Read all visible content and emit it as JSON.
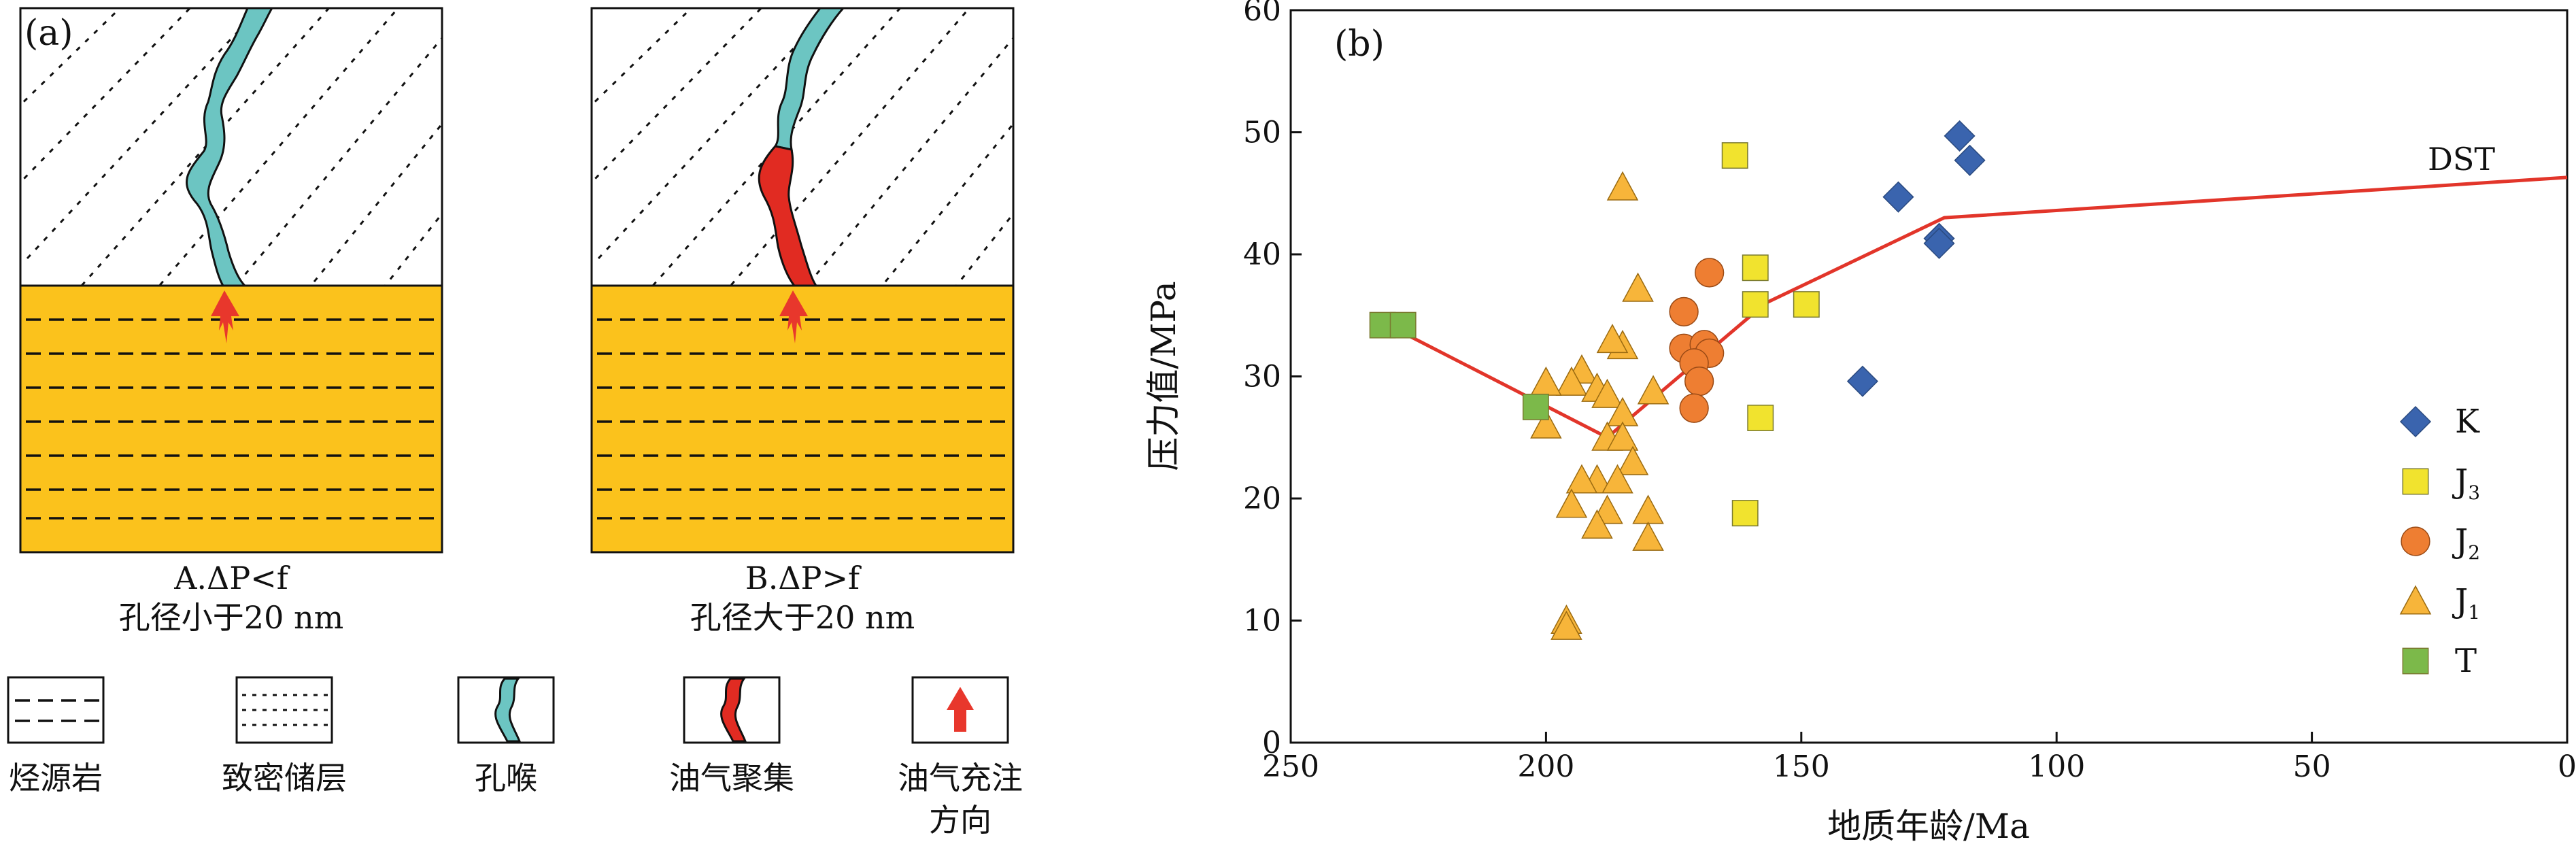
{
  "panel_a": {
    "label": "(a)",
    "case_a": {
      "line1": "A.ΔP<f",
      "line2": "孔径小于20 nm"
    },
    "case_b": {
      "line1": "B.ΔP>f",
      "line2": "孔径大于20 nm"
    },
    "legend": [
      {
        "icon": "source-rock-pattern",
        "label": "烃源岩"
      },
      {
        "icon": "tight-reservoir-pattern",
        "label": "致密储层"
      },
      {
        "icon": "pore-throat-icon",
        "label": "孔喉"
      },
      {
        "icon": "oil-gas-accumulation-icon",
        "label": "油气聚集"
      },
      {
        "icon": "charging-direction-arrow-icon",
        "label_line1": "油气充注",
        "label_line2": "方向"
      }
    ],
    "colors": {
      "source_rock": "#FBC21C",
      "pore_throat": "#6CC5C2",
      "accumulation": "#E12B22",
      "arrow": "#E8372C"
    }
  },
  "panel_b": {
    "label": "(b)"
  },
  "chart_data": {
    "type": "scatter",
    "xlabel": "地质年龄/Ma",
    "ylabel": "压力值/MPa",
    "xlim": [
      250,
      0
    ],
    "ylim": [
      0,
      60
    ],
    "xticks": [
      "250",
      "200",
      "150",
      "100",
      "50",
      "0"
    ],
    "yticks": [
      "0",
      "10",
      "20",
      "30",
      "40",
      "50",
      "60"
    ],
    "legend_position": "right",
    "series": [
      {
        "name": "K",
        "sub": "",
        "marker": "diamond",
        "color": "#3A64AE",
        "points": [
          [
            119,
            49.7
          ],
          [
            117,
            47.7
          ],
          [
            131,
            44.7
          ],
          [
            123,
            41.3
          ],
          [
            123,
            40.9
          ],
          [
            138,
            29.6
          ]
        ]
      },
      {
        "name": "J",
        "sub": "3",
        "marker": "square",
        "color": "#F1E32E",
        "points": [
          [
            163,
            48.1
          ],
          [
            159,
            38.9
          ],
          [
            159,
            35.9
          ],
          [
            149,
            35.9
          ],
          [
            158,
            26.6
          ],
          [
            161,
            18.8
          ]
        ]
      },
      {
        "name": "J",
        "sub": "2",
        "marker": "circle",
        "color": "#EE7E32",
        "points": [
          [
            168,
            38.5
          ],
          [
            173,
            35.3
          ],
          [
            173,
            32.3
          ],
          [
            169,
            32.6
          ],
          [
            168,
            31.9
          ],
          [
            171,
            31.1
          ],
          [
            170,
            29.6
          ],
          [
            171,
            27.4
          ]
        ]
      },
      {
        "name": "J",
        "sub": "1",
        "marker": "triangle",
        "color": "#F7B53A",
        "points": [
          [
            185,
            45.5
          ],
          [
            182,
            37.2
          ],
          [
            185,
            32.5
          ],
          [
            187,
            33.0
          ],
          [
            193,
            30.5
          ],
          [
            195,
            29.5
          ],
          [
            190,
            29.0
          ],
          [
            188,
            28.5
          ],
          [
            200,
            29.5
          ],
          [
            179,
            28.8
          ],
          [
            185,
            27.0
          ],
          [
            188,
            25.0
          ],
          [
            185,
            25.0
          ],
          [
            200,
            26.0
          ],
          [
            183,
            23.0
          ],
          [
            190,
            21.5
          ],
          [
            186,
            21.5
          ],
          [
            193,
            21.5
          ],
          [
            195,
            19.5
          ],
          [
            188,
            19.0
          ],
          [
            180,
            19.0
          ],
          [
            190,
            17.8
          ],
          [
            180,
            16.8
          ],
          [
            196,
            10.0
          ],
          [
            196,
            9.5
          ]
        ]
      },
      {
        "name": "T",
        "sub": "",
        "marker": "square",
        "color": "#7CB94A",
        "points": [
          [
            232,
            34.2
          ],
          [
            228,
            34.2
          ],
          [
            202,
            27.5
          ]
        ]
      }
    ],
    "dst_line": {
      "label": "DST",
      "color": "#E2352A",
      "points": [
        [
          230,
          34.0
        ],
        [
          188,
          25.0
        ],
        [
          157,
          36.0
        ],
        [
          122,
          43.0
        ],
        [
          0,
          46.3
        ]
      ]
    }
  }
}
